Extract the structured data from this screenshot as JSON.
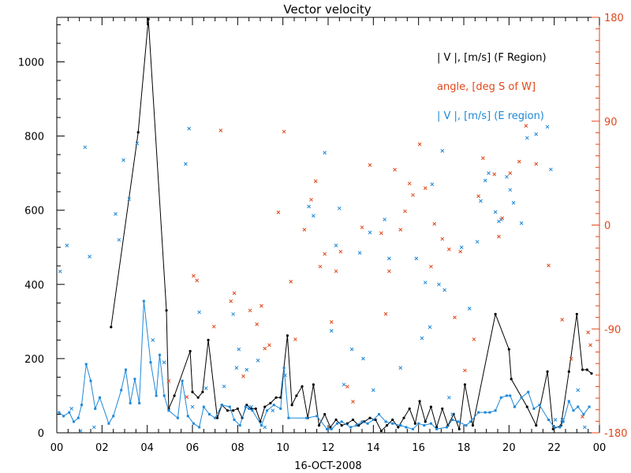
{
  "chart_data": {
    "type": "line",
    "title": "Vector velocity",
    "xlabel": "16-OCT-2008",
    "x_ticks": [
      "00",
      "02",
      "04",
      "06",
      "08",
      "10",
      "12",
      "14",
      "16",
      "18",
      "20",
      "22",
      "00"
    ],
    "xlim": [
      0,
      24
    ],
    "y_left": {
      "ylim": [
        0,
        1120
      ],
      "ticks": [
        0,
        200,
        400,
        600,
        800,
        1000
      ]
    },
    "y_right": {
      "ylim": [
        -180,
        180
      ],
      "ticks": [
        "-180",
        "-90",
        "0",
        "90",
        "180"
      ],
      "color": "#e0471a"
    },
    "legend": [
      {
        "text": "| V |, [m/s] (F Region)",
        "color": "#000000"
      },
      {
        "text": "angle, [deg S of W]",
        "color": "#e0471a"
      },
      {
        "text": "| V |, [m/s] (E region)",
        "color": "#1e88d8"
      }
    ],
    "series": [
      {
        "name": "| V |, [m/s] (F Region)",
        "color": "#000000",
        "style": "line-dots",
        "axis": "left",
        "points": [
          [
            2.4,
            285
          ],
          [
            3.6,
            810
          ],
          [
            4.05,
            1115
          ],
          [
            4.85,
            330
          ],
          [
            4.95,
            65
          ],
          [
            5.2,
            100
          ],
          [
            5.9,
            220
          ],
          [
            6.0,
            110
          ],
          [
            6.25,
            95
          ],
          [
            6.45,
            110
          ],
          [
            6.7,
            250
          ],
          [
            7.1,
            40
          ],
          [
            7.3,
            75
          ],
          [
            7.55,
            60
          ],
          [
            7.8,
            60
          ],
          [
            8.0,
            65
          ],
          [
            8.2,
            40
          ],
          [
            8.4,
            75
          ],
          [
            8.6,
            65
          ],
          [
            8.8,
            65
          ],
          [
            9.0,
            30
          ],
          [
            9.2,
            70
          ],
          [
            9.45,
            80
          ],
          [
            9.7,
            95
          ],
          [
            9.9,
            95
          ],
          [
            10.2,
            262
          ],
          [
            10.4,
            75
          ],
          [
            10.6,
            100
          ],
          [
            10.85,
            125
          ],
          [
            11.1,
            40
          ],
          [
            11.35,
            130
          ],
          [
            11.6,
            20
          ],
          [
            11.85,
            50
          ],
          [
            12.1,
            15
          ],
          [
            12.35,
            35
          ],
          [
            12.6,
            20
          ],
          [
            12.85,
            25
          ],
          [
            13.1,
            35
          ],
          [
            13.35,
            20
          ],
          [
            13.6,
            30
          ],
          [
            13.85,
            40
          ],
          [
            14.1,
            35
          ],
          [
            14.35,
            5
          ],
          [
            14.6,
            20
          ],
          [
            14.85,
            35
          ],
          [
            15.1,
            15
          ],
          [
            15.35,
            40
          ],
          [
            15.6,
            65
          ],
          [
            15.85,
            25
          ],
          [
            16.05,
            85
          ],
          [
            16.3,
            30
          ],
          [
            16.55,
            70
          ],
          [
            16.8,
            15
          ],
          [
            17.05,
            65
          ],
          [
            17.3,
            20
          ],
          [
            17.55,
            50
          ],
          [
            17.8,
            10
          ],
          [
            18.05,
            130
          ],
          [
            18.4,
            20
          ],
          [
            19.4,
            320
          ],
          [
            20.0,
            225
          ],
          [
            20.1,
            145
          ],
          [
            20.8,
            70
          ],
          [
            21.2,
            20
          ],
          [
            21.7,
            165
          ],
          [
            21.95,
            10
          ],
          [
            22.3,
            20
          ],
          [
            22.65,
            165
          ],
          [
            23.0,
            320
          ],
          [
            23.25,
            170
          ],
          [
            23.45,
            170
          ],
          [
            23.65,
            160
          ]
        ]
      },
      {
        "name": "| V |, [m/s] (E region)",
        "color": "#1e88d8",
        "style": "line-squares",
        "axis": "left",
        "points": [
          [
            0.1,
            55
          ],
          [
            0.3,
            45
          ],
          [
            0.55,
            55
          ],
          [
            0.75,
            30
          ],
          [
            0.95,
            40
          ],
          [
            1.1,
            75
          ],
          [
            1.3,
            185
          ],
          [
            1.5,
            140
          ],
          [
            1.7,
            65
          ],
          [
            1.9,
            95
          ],
          [
            2.3,
            25
          ],
          [
            2.5,
            45
          ],
          [
            2.85,
            115
          ],
          [
            3.05,
            170
          ],
          [
            3.25,
            80
          ],
          [
            3.45,
            145
          ],
          [
            3.65,
            80
          ],
          [
            3.85,
            355
          ],
          [
            4.15,
            190
          ],
          [
            4.4,
            100
          ],
          [
            4.55,
            210
          ],
          [
            4.75,
            100
          ],
          [
            4.95,
            60
          ],
          [
            5.35,
            40
          ],
          [
            5.55,
            140
          ],
          [
            5.8,
            45
          ],
          [
            6.05,
            25
          ],
          [
            6.3,
            15
          ],
          [
            6.5,
            70
          ],
          [
            6.75,
            50
          ],
          [
            7.0,
            40
          ],
          [
            7.3,
            75
          ],
          [
            7.65,
            70
          ],
          [
            7.85,
            35
          ],
          [
            8.1,
            20
          ],
          [
            8.35,
            70
          ],
          [
            8.5,
            65
          ],
          [
            8.65,
            60
          ],
          [
            9.05,
            20
          ],
          [
            9.3,
            60
          ],
          [
            9.6,
            75
          ],
          [
            9.9,
            65
          ],
          [
            10.05,
            175
          ],
          [
            10.25,
            40
          ],
          [
            11.05,
            40
          ],
          [
            11.5,
            45
          ],
          [
            11.95,
            10
          ],
          [
            12.15,
            10
          ],
          [
            12.4,
            25
          ],
          [
            12.6,
            30
          ],
          [
            13.0,
            15
          ],
          [
            13.25,
            20
          ],
          [
            13.5,
            30
          ],
          [
            13.75,
            25
          ],
          [
            14.0,
            35
          ],
          [
            14.25,
            50
          ],
          [
            14.55,
            30
          ],
          [
            14.85,
            25
          ],
          [
            15.2,
            20
          ],
          [
            15.45,
            15
          ],
          [
            15.75,
            10
          ],
          [
            16.0,
            25
          ],
          [
            16.25,
            20
          ],
          [
            16.55,
            25
          ],
          [
            16.8,
            10
          ],
          [
            17.25,
            15
          ],
          [
            17.5,
            35
          ],
          [
            17.75,
            30
          ],
          [
            18.1,
            20
          ],
          [
            18.3,
            30
          ],
          [
            18.65,
            55
          ],
          [
            18.95,
            55
          ],
          [
            19.15,
            55
          ],
          [
            19.4,
            60
          ],
          [
            19.65,
            95
          ],
          [
            19.9,
            100
          ],
          [
            20.05,
            100
          ],
          [
            20.25,
            70
          ],
          [
            20.55,
            95
          ],
          [
            20.85,
            110
          ],
          [
            21.1,
            65
          ],
          [
            21.35,
            75
          ],
          [
            21.75,
            35
          ],
          [
            22.0,
            15
          ],
          [
            22.25,
            15
          ],
          [
            22.4,
            30
          ],
          [
            22.65,
            85
          ],
          [
            22.85,
            60
          ],
          [
            23.05,
            70
          ],
          [
            23.3,
            50
          ],
          [
            23.55,
            70
          ]
        ]
      },
      {
        "name": "E region scattered samples",
        "color": "#1e88d8",
        "style": "markers",
        "axis": "left",
        "points": [
          [
            0.15,
            435
          ],
          [
            0.45,
            505
          ],
          [
            0.65,
            65
          ],
          [
            1.05,
            5
          ],
          [
            1.25,
            770
          ],
          [
            1.45,
            475
          ],
          [
            1.65,
            15
          ],
          [
            2.6,
            590
          ],
          [
            2.75,
            520
          ],
          [
            2.95,
            735
          ],
          [
            3.2,
            630
          ],
          [
            3.55,
            780
          ],
          [
            4.25,
            250
          ],
          [
            4.75,
            190
          ],
          [
            5.7,
            725
          ],
          [
            5.85,
            820
          ],
          [
            6.0,
            70
          ],
          [
            6.3,
            325
          ],
          [
            6.6,
            120
          ],
          [
            7.4,
            125
          ],
          [
            7.8,
            320
          ],
          [
            7.95,
            175
          ],
          [
            8.05,
            225
          ],
          [
            8.4,
            170
          ],
          [
            8.6,
            70
          ],
          [
            8.9,
            195
          ],
          [
            9.2,
            15
          ],
          [
            9.55,
            60
          ],
          [
            10.1,
            155
          ],
          [
            11.15,
            610
          ],
          [
            11.35,
            585
          ],
          [
            11.85,
            755
          ],
          [
            12.15,
            275
          ],
          [
            12.35,
            505
          ],
          [
            12.5,
            605
          ],
          [
            12.7,
            130
          ],
          [
            13.05,
            225
          ],
          [
            13.4,
            485
          ],
          [
            13.55,
            200
          ],
          [
            13.85,
            540
          ],
          [
            14.0,
            115
          ],
          [
            14.5,
            575
          ],
          [
            14.7,
            470
          ],
          [
            15.2,
            175
          ],
          [
            15.9,
            470
          ],
          [
            16.15,
            255
          ],
          [
            16.3,
            405
          ],
          [
            16.5,
            285
          ],
          [
            16.6,
            670
          ],
          [
            16.9,
            400
          ],
          [
            17.05,
            760
          ],
          [
            17.15,
            385
          ],
          [
            17.35,
            95
          ],
          [
            17.5,
            50
          ],
          [
            17.9,
            500
          ],
          [
            18.25,
            335
          ],
          [
            18.6,
            515
          ],
          [
            18.75,
            625
          ],
          [
            18.95,
            680
          ],
          [
            19.1,
            700
          ],
          [
            19.4,
            595
          ],
          [
            19.55,
            570
          ],
          [
            19.65,
            575
          ],
          [
            19.9,
            690
          ],
          [
            20.05,
            655
          ],
          [
            20.2,
            620
          ],
          [
            20.55,
            565
          ],
          [
            20.8,
            795
          ],
          [
            21.2,
            805
          ],
          [
            21.7,
            825
          ],
          [
            21.85,
            710
          ],
          [
            22.05,
            35
          ],
          [
            22.35,
            35
          ],
          [
            23.05,
            115
          ],
          [
            23.35,
            15
          ]
        ]
      },
      {
        "name": "angle, [deg S of W]",
        "color": "#e0471a",
        "style": "markers",
        "axis": "right",
        "points": [
          [
            4.95,
            -135
          ],
          [
            5.75,
            -149
          ],
          [
            6.05,
            -44
          ],
          [
            6.2,
            -48
          ],
          [
            6.95,
            -88
          ],
          [
            7.25,
            82
          ],
          [
            7.7,
            -66
          ],
          [
            7.85,
            -59
          ],
          [
            8.25,
            -131
          ],
          [
            8.55,
            -74
          ],
          [
            8.85,
            -86
          ],
          [
            9.05,
            -70
          ],
          [
            9.2,
            -107
          ],
          [
            9.4,
            -104
          ],
          [
            9.8,
            11
          ],
          [
            10.05,
            81
          ],
          [
            10.35,
            -49
          ],
          [
            10.55,
            -99
          ],
          [
            10.95,
            -4
          ],
          [
            11.25,
            22
          ],
          [
            11.45,
            38
          ],
          [
            11.65,
            -36
          ],
          [
            11.85,
            -25
          ],
          [
            12.15,
            -84
          ],
          [
            12.35,
            -40
          ],
          [
            12.55,
            -23
          ],
          [
            12.85,
            -140
          ],
          [
            13.1,
            -153
          ],
          [
            13.5,
            -2
          ],
          [
            13.85,
            52
          ],
          [
            14.35,
            -7
          ],
          [
            14.55,
            -77
          ],
          [
            14.7,
            -40
          ],
          [
            14.95,
            48
          ],
          [
            15.2,
            -4
          ],
          [
            15.4,
            12
          ],
          [
            15.6,
            36
          ],
          [
            15.75,
            26
          ],
          [
            16.05,
            70
          ],
          [
            16.3,
            32
          ],
          [
            16.55,
            -36
          ],
          [
            16.7,
            1
          ],
          [
            17.05,
            -12
          ],
          [
            17.35,
            -21
          ],
          [
            17.6,
            -80
          ],
          [
            17.85,
            -23
          ],
          [
            18.05,
            -126
          ],
          [
            18.45,
            -99
          ],
          [
            18.65,
            25
          ],
          [
            18.85,
            58
          ],
          [
            19.35,
            44
          ],
          [
            19.55,
            -10
          ],
          [
            19.7,
            6
          ],
          [
            20.05,
            45
          ],
          [
            20.45,
            55
          ],
          [
            20.75,
            86
          ],
          [
            21.2,
            53
          ],
          [
            21.75,
            -35
          ],
          [
            22.35,
            -82
          ],
          [
            22.75,
            -116
          ],
          [
            23.25,
            -166
          ],
          [
            23.5,
            -93
          ],
          [
            23.6,
            -104
          ]
        ]
      }
    ]
  }
}
